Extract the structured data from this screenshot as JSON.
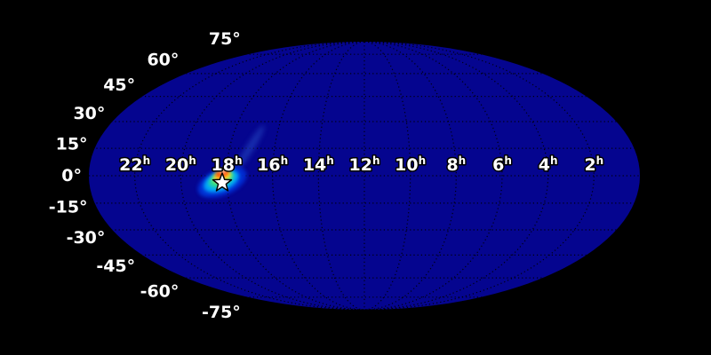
{
  "figure": {
    "background_color": "#000000"
  },
  "chart_data": {
    "type": "heatmap",
    "subtype": "all-sky-map",
    "projection": "mollweide",
    "colormap": "jet",
    "map_base_color": "#05058F",
    "graticule_color": "#000000",
    "grid_spacing": {
      "ra_hours": 2,
      "dec_degrees": 15
    },
    "ra_axis": {
      "unit_suffix": "h",
      "tick_hours": [
        22,
        20,
        18,
        16,
        14,
        12,
        10,
        8,
        6,
        4,
        2
      ],
      "tick_labels": [
        "22",
        "20",
        "18",
        "16",
        "14",
        "12",
        "10",
        "8",
        "6",
        "4",
        "2"
      ]
    },
    "dec_axis": {
      "tick_degrees": [
        75,
        60,
        45,
        30,
        15,
        0,
        -15,
        -30,
        -45,
        -60,
        -75
      ],
      "tick_labels": [
        "75°",
        "60°",
        "45°",
        "30°",
        "15°",
        "0°",
        "-15°",
        "-30°",
        "-45°",
        "-60°",
        "-75°"
      ]
    },
    "hotspot": {
      "approx_ra_hours": 18.2,
      "approx_dec_degrees": -4,
      "intensity_colors": [
        "#0033DD",
        "#00B4FF",
        "#2FE08C",
        "#FFE72E",
        "#FF4400",
        "#FFFFFF"
      ],
      "streak_color": "#2B55CC"
    },
    "marker": {
      "shape": "star",
      "fill_color": "#FFFFFF",
      "outline_color": "#000000"
    }
  }
}
